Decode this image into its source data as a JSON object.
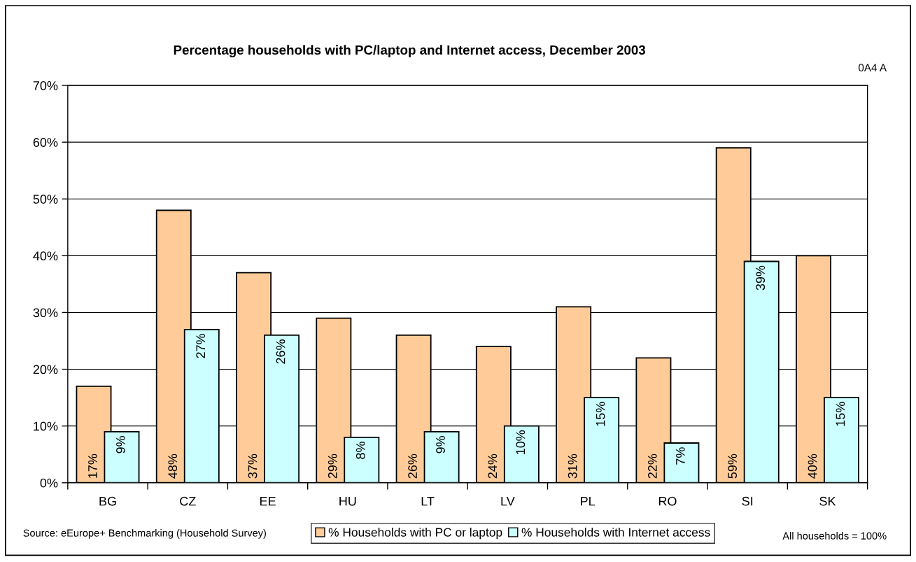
{
  "chart_data": {
    "type": "bar",
    "title": "Percentage households with PC/laptop and Internet access, December 2003",
    "categories": [
      "BG",
      "CZ",
      "EE",
      "HU",
      "LT",
      "LV",
      "PL",
      "RO",
      "SI",
      "SK"
    ],
    "series": [
      {
        "name": "% Households with PC or laptop",
        "color": "#ffcc99",
        "values": [
          17,
          48,
          37,
          29,
          26,
          24,
          31,
          22,
          59,
          40
        ],
        "value_labels": [
          "17%",
          "48%",
          "37%",
          "29%",
          "26%",
          "24%",
          "31%",
          "22%",
          "59%",
          "40%"
        ]
      },
      {
        "name": "% Households with Internet access",
        "color": "#ccffff",
        "values": [
          9,
          27,
          26,
          8,
          9,
          10,
          15,
          7,
          39,
          15
        ],
        "value_labels": [
          "9%",
          "27%",
          "26%",
          "8%",
          "9%",
          "10%",
          "15%",
          "7%",
          "39%",
          "15%"
        ]
      }
    ],
    "ylim": [
      0,
      70
    ],
    "yticks": [
      {
        "value": 0,
        "label": "0%"
      },
      {
        "value": 10,
        "label": "10%"
      },
      {
        "value": 20,
        "label": "20%"
      },
      {
        "value": 30,
        "label": "30%"
      },
      {
        "value": 40,
        "label": "40%"
      },
      {
        "value": 50,
        "label": "50%"
      },
      {
        "value": 60,
        "label": "60%"
      },
      {
        "value": 70,
        "label": "70%"
      }
    ],
    "grid": "y",
    "legend": "bottom",
    "annotations": [
      "0A4 A",
      "Source: eEurope+ Benchmarking (Household Survey)",
      "All households = 100%"
    ]
  }
}
